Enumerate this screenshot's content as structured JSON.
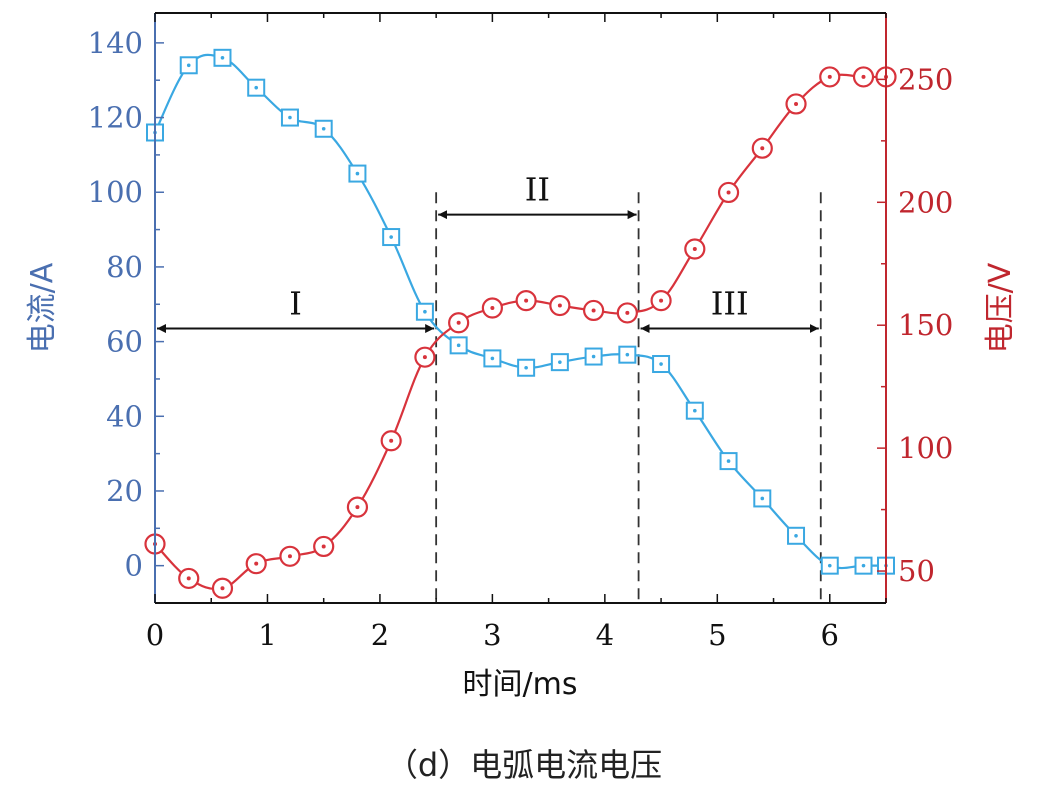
{
  "chart_data": {
    "type": "line",
    "xlabel": "时间/ms",
    "ylabel_left": "电流/A",
    "ylabel_right": "电压/V",
    "xlim": [
      0,
      6.5
    ],
    "ylim_left": [
      -10,
      148
    ],
    "ylim_right": [
      37,
      277
    ],
    "xticks": [
      0,
      1,
      2,
      3,
      4,
      5,
      6
    ],
    "yticks_left": [
      0,
      20,
      40,
      60,
      80,
      100,
      120,
      140
    ],
    "yticks_right": [
      50,
      100,
      150,
      200,
      250
    ],
    "grid": false,
    "colors": {
      "current": "#3aa8e2",
      "voltage": "#d8333c",
      "axis_left": "#4a6fb0",
      "axis_right": "#c0262e"
    },
    "series": [
      {
        "name": "电流",
        "axis": "left",
        "marker": "square",
        "x": [
          0,
          0.3,
          0.6,
          0.9,
          1.2,
          1.5,
          1.8,
          2.1,
          2.4,
          2.7,
          3.0,
          3.3,
          3.6,
          3.9,
          4.2,
          4.5,
          4.8,
          5.1,
          5.4,
          5.7,
          6.0,
          6.3,
          6.5
        ],
        "values": [
          116,
          134,
          136,
          128,
          120,
          117,
          105,
          88,
          68,
          59,
          55.5,
          53,
          54.5,
          56,
          56.5,
          54,
          41.5,
          28,
          18,
          8,
          0,
          0,
          0
        ]
      },
      {
        "name": "电压",
        "axis": "right",
        "marker": "circle",
        "x": [
          0,
          0.3,
          0.6,
          0.9,
          1.2,
          1.5,
          1.8,
          2.1,
          2.4,
          2.7,
          3.0,
          3.3,
          3.6,
          3.9,
          4.2,
          4.5,
          4.8,
          5.1,
          5.4,
          5.7,
          6.0,
          6.3,
          6.5
        ],
        "values": [
          61,
          47,
          43,
          53,
          56,
          60,
          76,
          103,
          137,
          151,
          157,
          160,
          158,
          156,
          155,
          160,
          181,
          204,
          222,
          240,
          251,
          251,
          251
        ]
      }
    ],
    "vlines": [
      2.5,
      4.3,
      5.92
    ],
    "regions": [
      {
        "label": "I",
        "x0": 0,
        "x1": 2.5,
        "y_left": 63.5
      },
      {
        "label": "II",
        "x0": 2.5,
        "x1": 4.3,
        "y_left": 94
      },
      {
        "label": "III",
        "x0": 4.3,
        "x1": 5.92,
        "y_left": 63.5
      }
    ]
  },
  "caption": "（d）电弧电流电压"
}
